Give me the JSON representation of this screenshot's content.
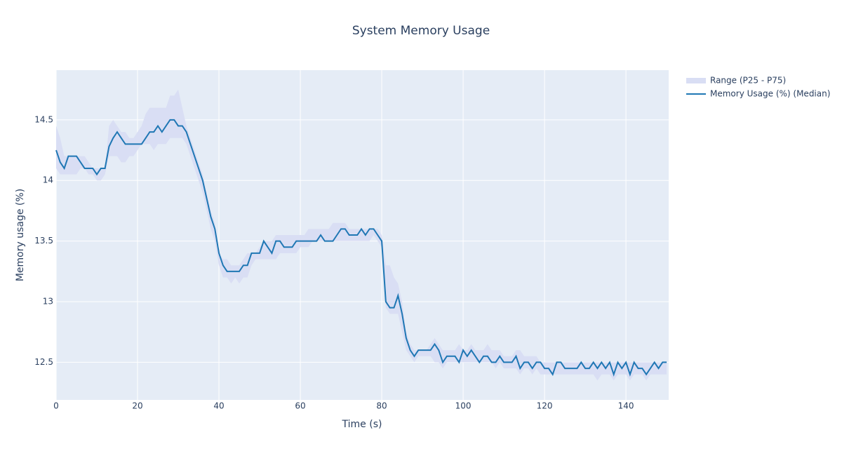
{
  "chart_data": {
    "type": "line",
    "title": "System Memory Usage",
    "x_label": "Time (s)",
    "y_label": "Memory usage (%)",
    "x": [
      0,
      1,
      2,
      3,
      4,
      5,
      6,
      7,
      8,
      9,
      10,
      11,
      12,
      13,
      14,
      15,
      16,
      17,
      18,
      19,
      20,
      21,
      22,
      23,
      24,
      25,
      26,
      27,
      28,
      29,
      30,
      31,
      32,
      33,
      34,
      35,
      36,
      37,
      38,
      39,
      40,
      41,
      42,
      43,
      44,
      45,
      46,
      47,
      48,
      49,
      50,
      51,
      52,
      53,
      54,
      55,
      56,
      57,
      58,
      59,
      60,
      61,
      62,
      63,
      64,
      65,
      66,
      67,
      68,
      69,
      70,
      71,
      72,
      73,
      74,
      75,
      76,
      77,
      78,
      79,
      80,
      81,
      82,
      83,
      84,
      85,
      86,
      87,
      88,
      89,
      90,
      91,
      92,
      93,
      94,
      95,
      96,
      97,
      98,
      99,
      100,
      101,
      102,
      103,
      104,
      105,
      106,
      107,
      108,
      109,
      110,
      111,
      112,
      113,
      114,
      115,
      116,
      117,
      118,
      119,
      120,
      121,
      122,
      123,
      124,
      125,
      126,
      127,
      128,
      129,
      130,
      131,
      132,
      133,
      134,
      135,
      136,
      137,
      138,
      139,
      140,
      141,
      142,
      143,
      144,
      145,
      146,
      147,
      148,
      149,
      150
    ],
    "series": [
      {
        "name": "Range (P25 - P75)",
        "color": "#d9def4",
        "upper": [
          14.45,
          14.35,
          14.2,
          14.2,
          14.2,
          14.2,
          14.2,
          14.2,
          14.15,
          14.1,
          14.1,
          14.1,
          14.1,
          14.45,
          14.5,
          14.45,
          14.4,
          14.4,
          14.35,
          14.35,
          14.4,
          14.45,
          14.55,
          14.6,
          14.6,
          14.6,
          14.6,
          14.6,
          14.7,
          14.7,
          14.75,
          14.6,
          14.45,
          14.35,
          14.25,
          14.15,
          14.05,
          13.9,
          13.75,
          13.65,
          13.4,
          13.35,
          13.35,
          13.3,
          13.3,
          13.3,
          13.35,
          13.4,
          13.4,
          13.4,
          13.45,
          13.5,
          13.5,
          13.5,
          13.55,
          13.55,
          13.55,
          13.55,
          13.55,
          13.55,
          13.55,
          13.55,
          13.6,
          13.6,
          13.6,
          13.6,
          13.6,
          13.6,
          13.65,
          13.65,
          13.65,
          13.65,
          13.6,
          13.6,
          13.6,
          13.6,
          13.6,
          13.6,
          13.6,
          13.6,
          13.55,
          13.3,
          13.3,
          13.2,
          13.15,
          13.0,
          12.75,
          12.65,
          12.6,
          12.6,
          12.6,
          12.6,
          12.65,
          12.7,
          12.65,
          12.6,
          12.6,
          12.6,
          12.6,
          12.65,
          12.6,
          12.6,
          12.65,
          12.6,
          12.6,
          12.6,
          12.65,
          12.6,
          12.6,
          12.6,
          12.55,
          12.55,
          12.55,
          12.6,
          12.6,
          12.55,
          12.55,
          12.55,
          12.55,
          12.5,
          12.5,
          12.5,
          12.5,
          12.5,
          12.5,
          12.5,
          12.5,
          12.5,
          12.5,
          12.5,
          12.5,
          12.5,
          12.5,
          12.5,
          12.5,
          12.5,
          12.5,
          12.5,
          12.5,
          12.5,
          12.5,
          12.5,
          12.5,
          12.5,
          12.5,
          12.5,
          12.5,
          12.5,
          12.5,
          12.5,
          12.5
        ],
        "lower": [
          14.1,
          14.05,
          14.05,
          14.05,
          14.05,
          14.05,
          14.1,
          14.1,
          14.05,
          14.05,
          14.0,
          14.0,
          14.05,
          14.2,
          14.2,
          14.2,
          14.15,
          14.15,
          14.2,
          14.2,
          14.25,
          14.3,
          14.3,
          14.3,
          14.25,
          14.3,
          14.3,
          14.3,
          14.35,
          14.35,
          14.35,
          14.35,
          14.3,
          14.2,
          14.1,
          14.0,
          13.9,
          13.75,
          13.6,
          13.5,
          13.3,
          13.2,
          13.2,
          13.15,
          13.2,
          13.15,
          13.2,
          13.2,
          13.3,
          13.35,
          13.35,
          13.35,
          13.35,
          13.35,
          13.35,
          13.4,
          13.4,
          13.4,
          13.4,
          13.4,
          13.45,
          13.45,
          13.45,
          13.5,
          13.5,
          13.5,
          13.5,
          13.5,
          13.5,
          13.5,
          13.5,
          13.5,
          13.5,
          13.5,
          13.5,
          13.5,
          13.5,
          13.5,
          13.55,
          13.5,
          13.45,
          12.95,
          12.9,
          12.9,
          12.9,
          12.75,
          12.6,
          12.55,
          12.5,
          12.55,
          12.55,
          12.55,
          12.55,
          12.5,
          12.5,
          12.45,
          12.5,
          12.5,
          12.5,
          12.5,
          12.5,
          12.5,
          12.5,
          12.5,
          12.5,
          12.5,
          12.5,
          12.5,
          12.45,
          12.5,
          12.45,
          12.45,
          12.45,
          12.45,
          12.4,
          12.45,
          12.45,
          12.4,
          12.45,
          12.4,
          12.4,
          12.4,
          12.4,
          12.4,
          12.4,
          12.4,
          12.4,
          12.4,
          12.4,
          12.4,
          12.4,
          12.4,
          12.4,
          12.35,
          12.4,
          12.4,
          12.4,
          12.35,
          12.4,
          12.4,
          12.4,
          12.35,
          12.4,
          12.4,
          12.4,
          12.35,
          12.4,
          12.4,
          12.4,
          12.4,
          12.4
        ]
      },
      {
        "name": "Memory Usage (%) (Median)",
        "color": "#1f77b4",
        "values": [
          14.25,
          14.15,
          14.1,
          14.2,
          14.2,
          14.2,
          14.15,
          14.1,
          14.1,
          14.1,
          14.05,
          14.1,
          14.1,
          14.28,
          14.35,
          14.4,
          14.35,
          14.3,
          14.3,
          14.3,
          14.3,
          14.3,
          14.35,
          14.4,
          14.4,
          14.45,
          14.4,
          14.45,
          14.5,
          14.5,
          14.45,
          14.45,
          14.4,
          14.3,
          14.2,
          14.1,
          14.0,
          13.85,
          13.7,
          13.6,
          13.4,
          13.3,
          13.25,
          13.25,
          13.25,
          13.25,
          13.3,
          13.3,
          13.4,
          13.4,
          13.4,
          13.5,
          13.45,
          13.4,
          13.5,
          13.5,
          13.45,
          13.45,
          13.45,
          13.5,
          13.5,
          13.5,
          13.5,
          13.5,
          13.5,
          13.55,
          13.5,
          13.5,
          13.5,
          13.55,
          13.6,
          13.6,
          13.55,
          13.55,
          13.55,
          13.6,
          13.55,
          13.6,
          13.6,
          13.55,
          13.5,
          13.0,
          12.95,
          12.95,
          13.05,
          12.9,
          12.7,
          12.6,
          12.55,
          12.6,
          12.6,
          12.6,
          12.6,
          12.65,
          12.6,
          12.5,
          12.55,
          12.55,
          12.55,
          12.5,
          12.6,
          12.55,
          12.6,
          12.55,
          12.5,
          12.55,
          12.55,
          12.5,
          12.5,
          12.55,
          12.5,
          12.5,
          12.5,
          12.55,
          12.45,
          12.5,
          12.5,
          12.45,
          12.5,
          12.5,
          12.45,
          12.45,
          12.4,
          12.5,
          12.5,
          12.45,
          12.45,
          12.45,
          12.45,
          12.5,
          12.45,
          12.45,
          12.5,
          12.45,
          12.5,
          12.45,
          12.5,
          12.4,
          12.5,
          12.45,
          12.5,
          12.4,
          12.5,
          12.45,
          12.45,
          12.4,
          12.45,
          12.5,
          12.45,
          12.5,
          12.5
        ]
      }
    ],
    "xlim": [
      0,
      150.5
    ],
    "ylim": [
      12.19,
      14.91
    ],
    "xticks": [
      0,
      20,
      40,
      60,
      80,
      100,
      120,
      140
    ],
    "yticks": [
      12.5,
      13,
      13.5,
      14,
      14.5
    ],
    "grid": true,
    "legend": "top-right",
    "plot_bg": "#e5ecf6"
  }
}
